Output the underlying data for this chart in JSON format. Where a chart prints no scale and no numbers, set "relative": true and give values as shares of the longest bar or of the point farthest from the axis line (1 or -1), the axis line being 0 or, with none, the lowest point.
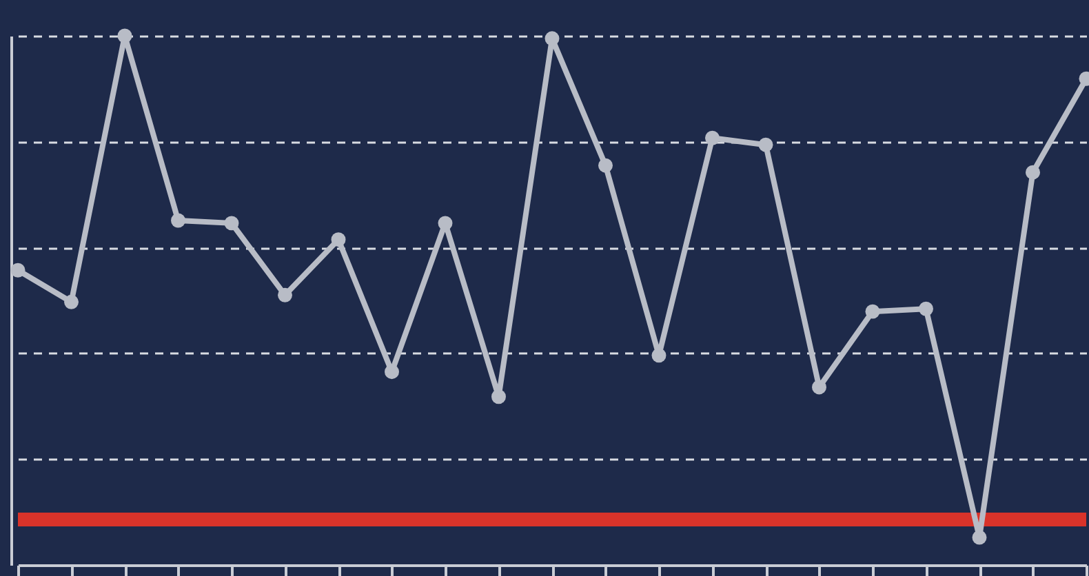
{
  "chart_data": {
    "type": "line",
    "relative": true,
    "categories": [
      null,
      null,
      null,
      null,
      null,
      null,
      null,
      null,
      null,
      null,
      null,
      null,
      null,
      null,
      null,
      null,
      null,
      null,
      null,
      null,
      null
    ],
    "series": [
      {
        "color": "#b8bcc6",
        "values": [
          0.557,
          0.497,
          1.0,
          0.651,
          0.646,
          0.51,
          0.615,
          0.365,
          0.646,
          0.318,
          0.995,
          0.755,
          0.396,
          0.807,
          0.794,
          0.336,
          0.479,
          0.484,
          0.052,
          0.742,
          0.919
        ]
      }
    ],
    "ref_lines": [
      {
        "axis": "y",
        "value": 0.086,
        "color": "#d8332a"
      }
    ],
    "grid": "y",
    "marker": "circle",
    "line_style": "solid",
    "legend": false
  }
}
